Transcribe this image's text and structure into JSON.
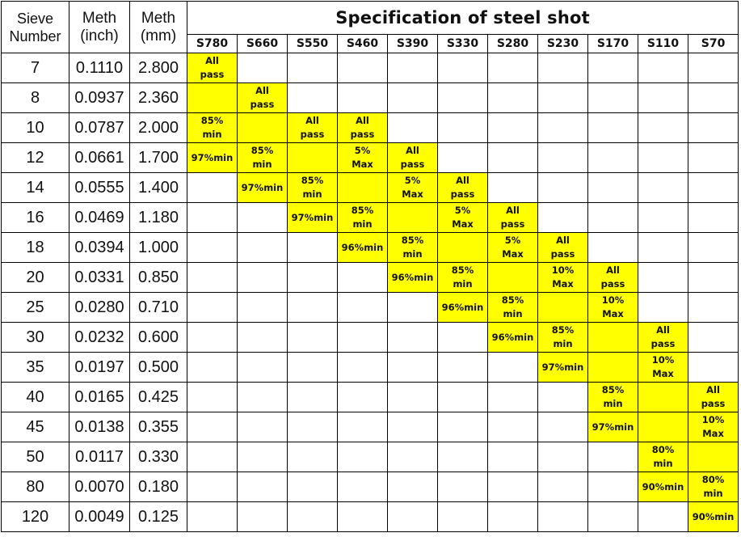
{
  "header": {
    "sieve_label": "Sieve Number",
    "meth_inch_label": "Meth (inch)",
    "meth_mm_label": "Meth (mm)",
    "spec_title": "Specification of steel shot",
    "grades": [
      "S780",
      "S660",
      "S550",
      "S460",
      "S390",
      "S330",
      "S280",
      "S230",
      "S170",
      "S110",
      "S70"
    ]
  },
  "highlight_color": "#ffff00",
  "rows": [
    {
      "sieve": "7",
      "inch": "0.1110",
      "mm": "2.800",
      "cells": [
        "All\npass",
        "",
        "",
        "",
        "",
        "",
        "",
        "",
        "",
        "",
        ""
      ]
    },
    {
      "sieve": "8",
      "inch": "0.0937",
      "mm": "2.360",
      "cells": [
        "",
        "All\npass",
        "",
        "",
        "",
        "",
        "",
        "",
        "",
        "",
        ""
      ]
    },
    {
      "sieve": "10",
      "inch": "0.0787",
      "mm": "2.000",
      "cells": [
        "85%\nmin",
        "",
        "All\npass",
        "All\npass",
        "",
        "",
        "",
        "",
        "",
        "",
        ""
      ]
    },
    {
      "sieve": "12",
      "inch": "0.0661",
      "mm": "1.700",
      "cells": [
        "97%min",
        "85%\nmin",
        "",
        "5%\nMax",
        "All\npass",
        "",
        "",
        "",
        "",
        "",
        ""
      ]
    },
    {
      "sieve": "14",
      "inch": "0.0555",
      "mm": "1.400",
      "cells": [
        "",
        "97%min",
        "85%\nmin",
        "",
        "5%\nMax",
        "All\npass",
        "",
        "",
        "",
        "",
        ""
      ]
    },
    {
      "sieve": "16",
      "inch": "0.0469",
      "mm": "1.180",
      "cells": [
        "",
        "",
        "97%min",
        "85%\nmin",
        "",
        "5%\nMax",
        "All\npass",
        "",
        "",
        "",
        ""
      ]
    },
    {
      "sieve": "18",
      "inch": "0.0394",
      "mm": "1.000",
      "cells": [
        "",
        "",
        "",
        "96%min",
        "85%\nmin",
        "",
        "5%\nMax",
        "All\npass",
        "",
        "",
        ""
      ]
    },
    {
      "sieve": "20",
      "inch": "0.0331",
      "mm": "0.850",
      "cells": [
        "",
        "",
        "",
        "",
        "96%min",
        "85%\nmin",
        "",
        "10%\nMax",
        "All\npass",
        "",
        ""
      ]
    },
    {
      "sieve": "25",
      "inch": "0.0280",
      "mm": "0.710",
      "cells": [
        "",
        "",
        "",
        "",
        "",
        "96%min",
        "85%\nmin",
        "",
        "10%\nMax",
        "",
        ""
      ]
    },
    {
      "sieve": "30",
      "inch": "0.0232",
      "mm": "0.600",
      "cells": [
        "",
        "",
        "",
        "",
        "",
        "",
        "96%min",
        "85%\nmin",
        "",
        "All\npass",
        ""
      ]
    },
    {
      "sieve": "35",
      "inch": "0.0197",
      "mm": "0.500",
      "cells": [
        "",
        "",
        "",
        "",
        "",
        "",
        "",
        "97%min",
        "",
        "10%\nMax",
        ""
      ]
    },
    {
      "sieve": "40",
      "inch": "0.0165",
      "mm": "0.425",
      "cells": [
        "",
        "",
        "",
        "",
        "",
        "",
        "",
        "",
        "85%\nmin",
        "",
        "All\npass"
      ]
    },
    {
      "sieve": "45",
      "inch": "0.0138",
      "mm": "0.355",
      "cells": [
        "",
        "",
        "",
        "",
        "",
        "",
        "",
        "",
        "97%min",
        "",
        "10%\nMax"
      ]
    },
    {
      "sieve": "50",
      "inch": "0.0117",
      "mm": "0.330",
      "cells": [
        "",
        "",
        "",
        "",
        "",
        "",
        "",
        "",
        "",
        "80%\nmin",
        ""
      ]
    },
    {
      "sieve": "80",
      "inch": "0.0070",
      "mm": "0.180",
      "cells": [
        "",
        "",
        "",
        "",
        "",
        "",
        "",
        "",
        "",
        "90%min",
        "80%\nmin"
      ]
    },
    {
      "sieve": "120",
      "inch": "0.0049",
      "mm": "0.125",
      "cells": [
        "",
        "",
        "",
        "",
        "",
        "",
        "",
        "",
        "",
        "",
        "90%min"
      ]
    }
  ],
  "highlight": [
    [
      0
    ],
    [
      0,
      1
    ],
    [
      0,
      1,
      2,
      3
    ],
    [
      0,
      1,
      2,
      3,
      4
    ],
    [
      1,
      2,
      3,
      4,
      5
    ],
    [
      2,
      3,
      4,
      5,
      6
    ],
    [
      3,
      4,
      5,
      6,
      7
    ],
    [
      4,
      5,
      6,
      7,
      8
    ],
    [
      5,
      6,
      7,
      8
    ],
    [
      6,
      7,
      8,
      9
    ],
    [
      7,
      8,
      9
    ],
    [
      8,
      9,
      10
    ],
    [
      8,
      9,
      10
    ],
    [
      9,
      10
    ],
    [
      9,
      10
    ],
    [
      10
    ]
  ]
}
